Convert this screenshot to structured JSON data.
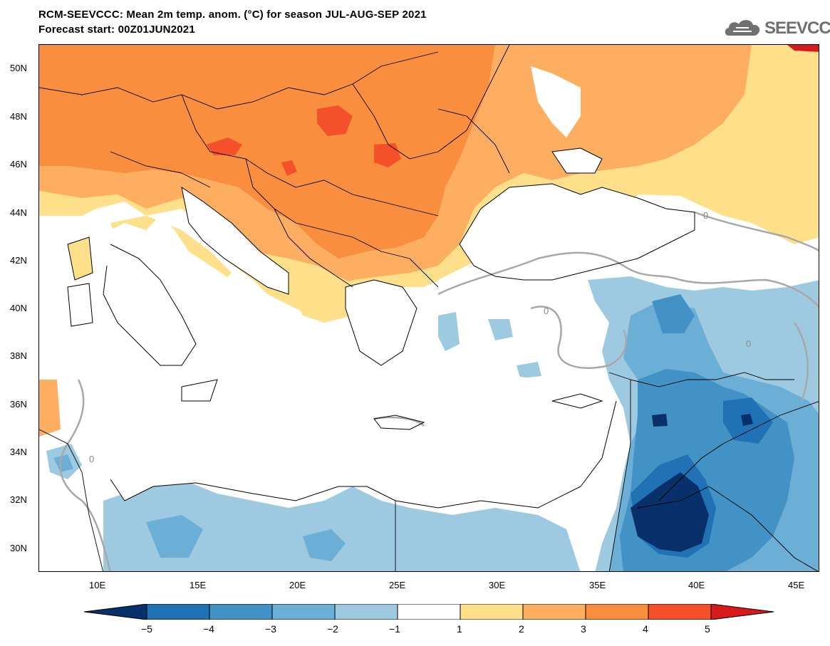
{
  "header": {
    "title_line1": "RCM-SEEVCCC: Mean 2m temp. anom. (°C) for season JUL-AUG-SEP 2021",
    "title_line2": "Forecast start: 00Z01JUN2021"
  },
  "logo": {
    "text": "SEEVCCC",
    "icon": "cloud-icon"
  },
  "map": {
    "variable": "Mean 2m temperature anomaly",
    "unit": "°C",
    "lon_range": [
      7,
      46
    ],
    "lat_range": [
      29,
      51
    ],
    "y_ticks": [
      {
        "lat": 50,
        "label": "50N"
      },
      {
        "lat": 48,
        "label": "48N"
      },
      {
        "lat": 46,
        "label": "46N"
      },
      {
        "lat": 44,
        "label": "44N"
      },
      {
        "lat": 42,
        "label": "42N"
      },
      {
        "lat": 40,
        "label": "40N"
      },
      {
        "lat": 38,
        "label": "38N"
      },
      {
        "lat": 36,
        "label": "36N"
      },
      {
        "lat": 34,
        "label": "34N"
      },
      {
        "lat": 32,
        "label": "32N"
      },
      {
        "lat": 30,
        "label": "30N"
      }
    ],
    "x_ticks": [
      {
        "lon": 10,
        "label": "10E"
      },
      {
        "lon": 15,
        "label": "15E"
      },
      {
        "lon": 20,
        "label": "20E"
      },
      {
        "lon": 25,
        "label": "25E"
      },
      {
        "lon": 30,
        "label": "30E"
      },
      {
        "lon": 35,
        "label": "35E"
      },
      {
        "lon": 40,
        "label": "40E"
      },
      {
        "lon": 45,
        "label": "45E"
      }
    ],
    "contour_labels": [
      "0",
      "0",
      "0",
      "0",
      "0"
    ]
  },
  "colorbar": {
    "levels": [
      -5,
      -4,
      -3,
      -2,
      -1,
      1,
      2,
      3,
      4,
      5
    ],
    "labels": [
      "−5",
      "−4",
      "−3",
      "−2",
      "−1",
      "1",
      "2",
      "3",
      "4",
      "5"
    ],
    "colors": [
      "#08306b",
      "#2171b5",
      "#4292c6",
      "#6baed6",
      "#9ecae1",
      "#ffffff",
      "#fee08b",
      "#fdae61",
      "#f98e3e",
      "#f4502a",
      "#d7191c"
    ]
  }
}
